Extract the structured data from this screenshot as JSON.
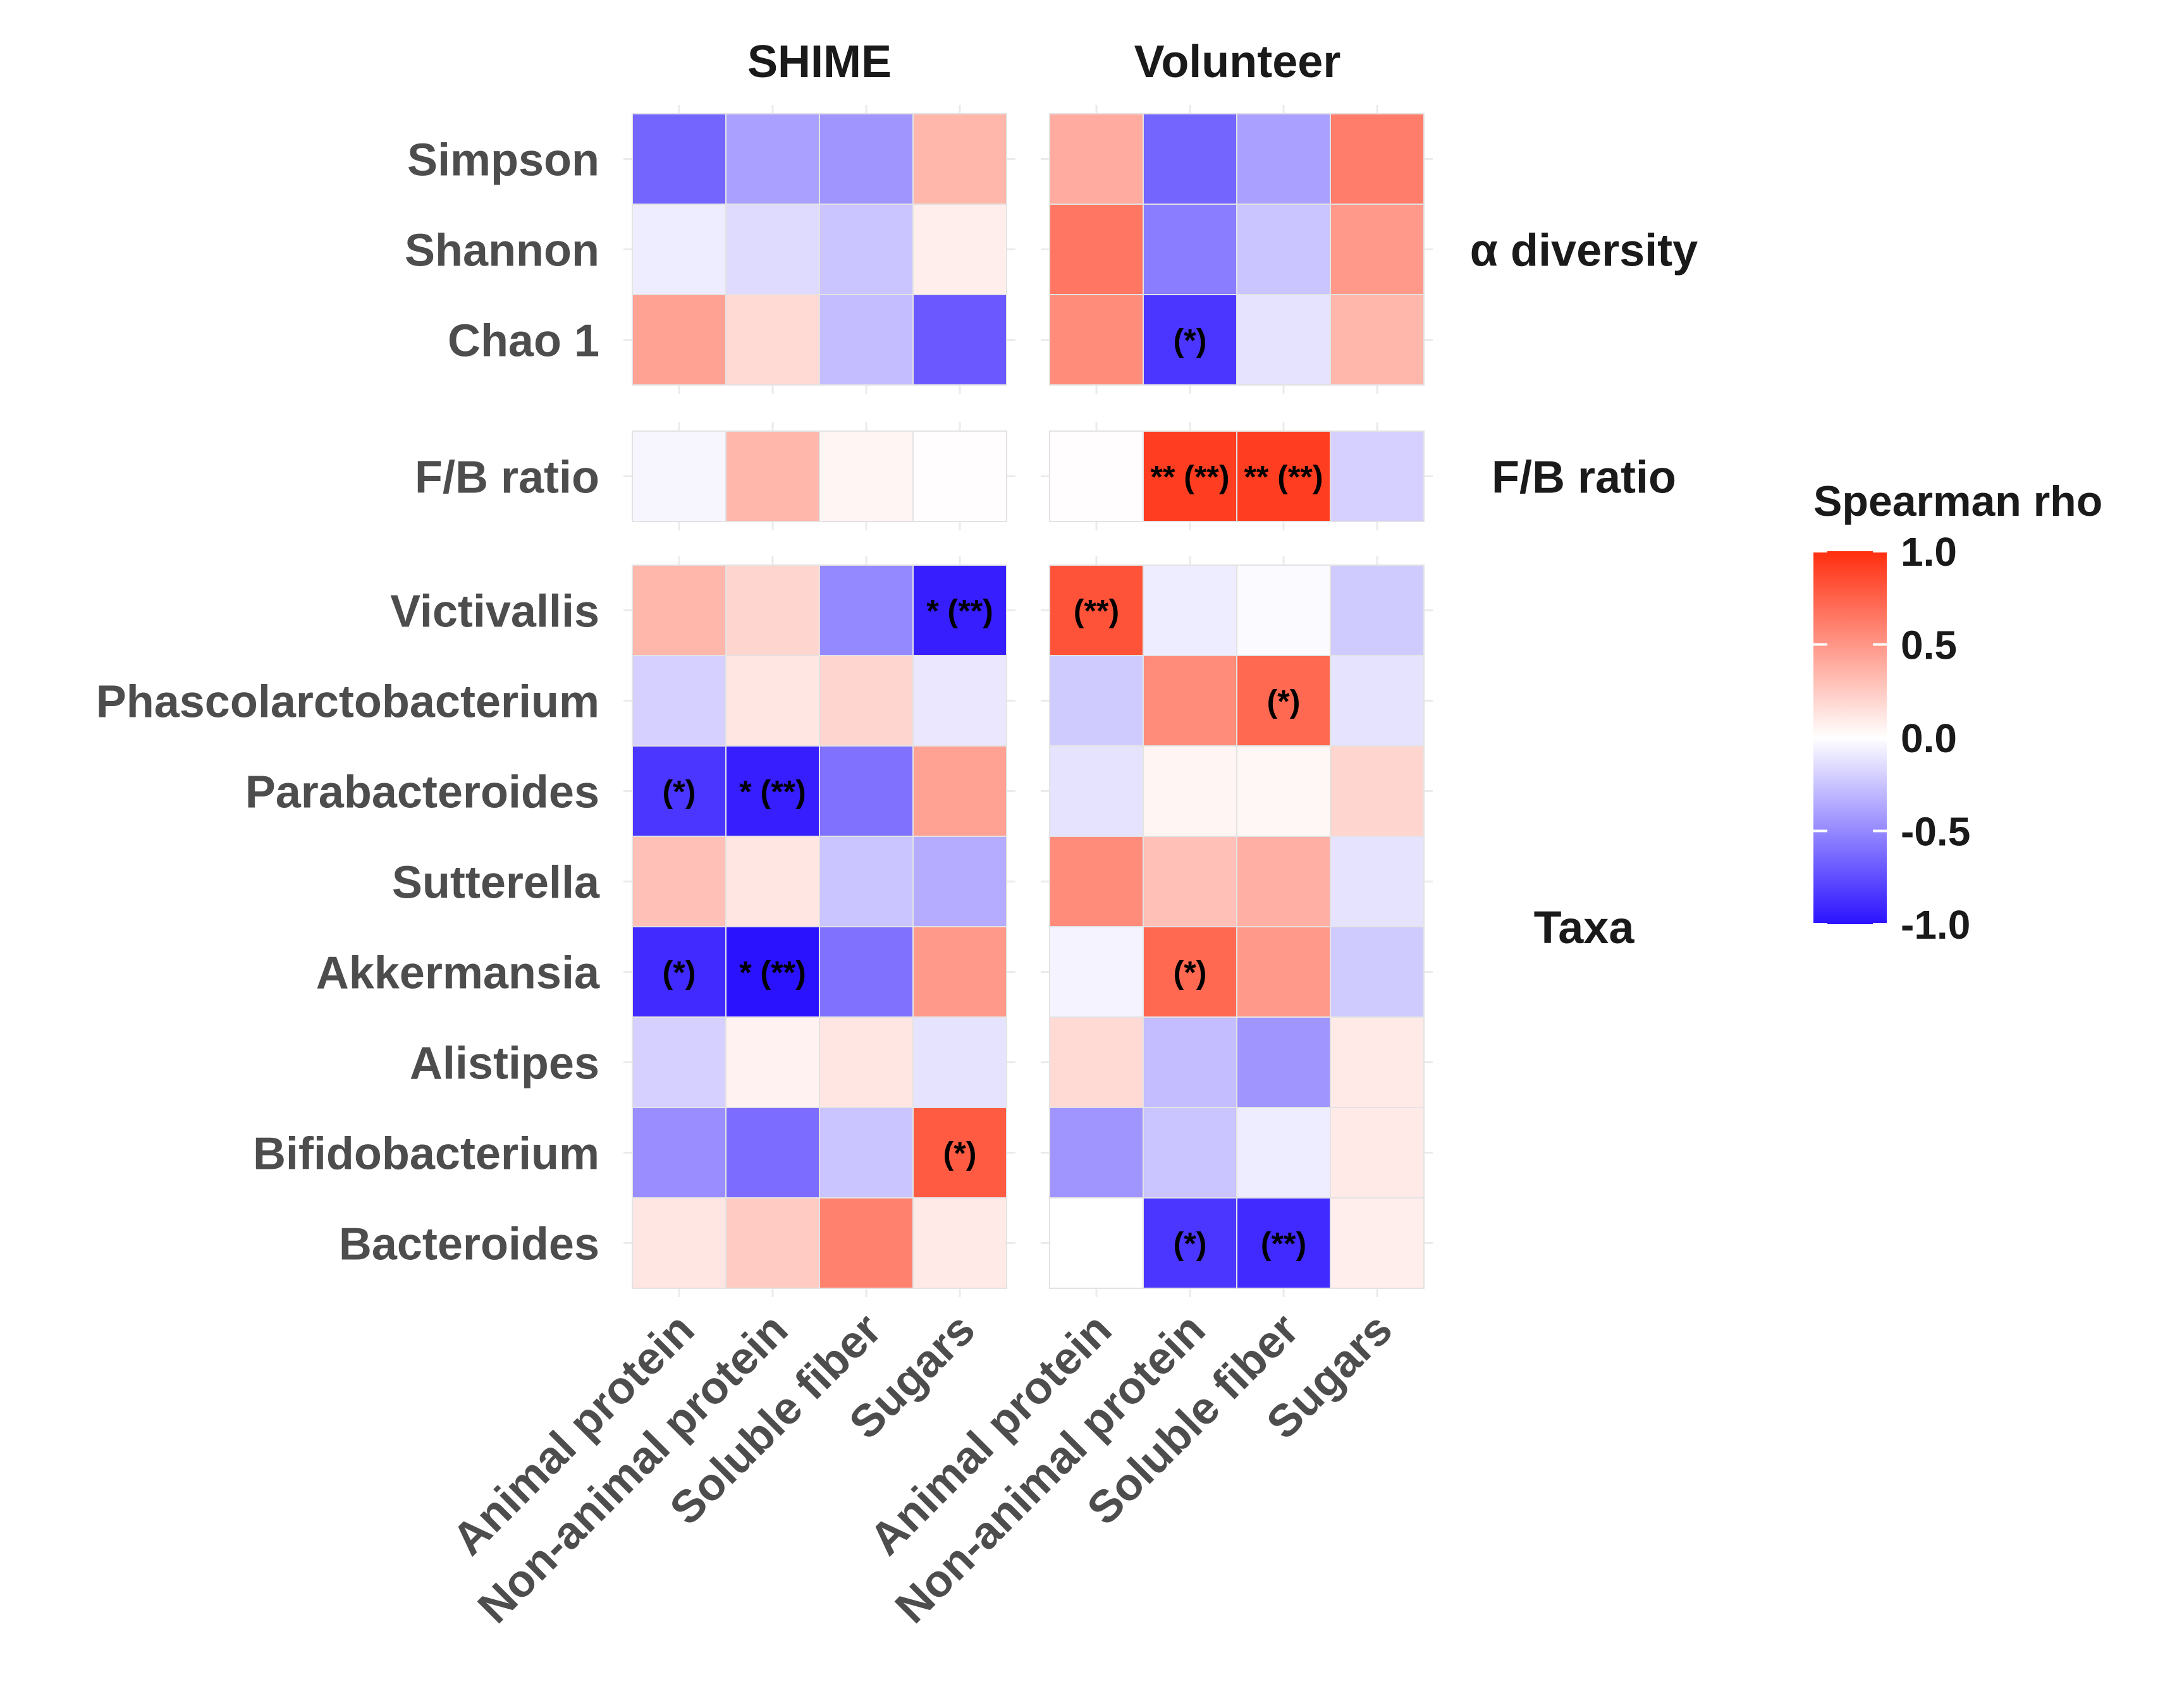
{
  "chart_data": {
    "type": "heatmap",
    "facets": [
      "SHIME",
      "Volunteer"
    ],
    "x_categories": [
      "Animal protein",
      "Non-animal protein",
      "Soluble fiber",
      "Sugars"
    ],
    "groups": [
      {
        "name": "α diversity",
        "rows": [
          "Simpson",
          "Shannon",
          "Chao 1"
        ]
      },
      {
        "name": "F/B ratio",
        "rows": [
          "F/B ratio"
        ]
      },
      {
        "name": "Taxa",
        "rows": [
          "Victivallis",
          "Phascolarctobacterium",
          "Parabacteroides",
          "Sutterella",
          "Akkermansia",
          "Alistipes",
          "Bifidobacterium",
          "Bacteroides"
        ]
      }
    ],
    "values": {
      "SHIME": {
        "Simpson": [
          -0.65,
          -0.4,
          -0.45,
          0.35
        ],
        "Shannon": [
          -0.08,
          -0.15,
          -0.25,
          0.08
        ],
        "Chao 1": [
          0.45,
          0.18,
          -0.28,
          -0.7
        ],
        "F/B ratio": [
          -0.04,
          0.35,
          0.05,
          0.01
        ],
        "Victivallis": [
          0.35,
          0.2,
          -0.5,
          -0.95
        ],
        "Phascolarctobacterium": [
          -0.2,
          0.12,
          0.2,
          -0.1
        ],
        "Parabacteroides": [
          -0.85,
          -0.95,
          -0.6,
          0.45
        ],
        "Sutterella": [
          0.3,
          0.12,
          -0.25,
          -0.35
        ],
        "Akkermansia": [
          -0.9,
          -1.0,
          -0.6,
          0.48
        ],
        "Alistipes": [
          -0.2,
          0.06,
          0.12,
          -0.12
        ],
        "Bifidobacterium": [
          -0.48,
          -0.62,
          -0.25,
          0.78
        ],
        "Bacteroides": [
          0.12,
          0.25,
          0.6,
          0.1
        ]
      },
      "Volunteer": {
        "Simpson": [
          0.4,
          -0.65,
          -0.4,
          0.62
        ],
        "Shannon": [
          0.65,
          -0.55,
          -0.25,
          0.48
        ],
        "Chao 1": [
          0.55,
          -0.85,
          -0.12,
          0.35
        ],
        "F/B ratio": [
          0.01,
          0.92,
          0.92,
          -0.2
        ],
        "Victivallis": [
          0.82,
          -0.08,
          -0.02,
          -0.22
        ],
        "Phascolarctobacterium": [
          -0.22,
          0.55,
          0.72,
          -0.12
        ],
        "Parabacteroides": [
          -0.12,
          0.05,
          0.04,
          0.2
        ],
        "Sutterella": [
          0.55,
          0.3,
          0.38,
          -0.12
        ],
        "Akkermansia": [
          -0.05,
          0.72,
          0.48,
          -0.22
        ],
        "Alistipes": [
          0.18,
          -0.28,
          -0.45,
          0.1
        ],
        "Bifidobacterium": [
          -0.45,
          -0.25,
          -0.08,
          0.1
        ],
        "Bacteroides": [
          0.0,
          -0.85,
          -0.9,
          0.08
        ]
      }
    },
    "significance": {
      "SHIME": {
        "Victivallis": [
          "",
          "",
          "",
          "* (**)"
        ],
        "Parabacteroides": [
          "(*)",
          "* (**)",
          "",
          ""
        ],
        "Akkermansia": [
          "(*)",
          "* (**)",
          "",
          ""
        ],
        "Bifidobacterium": [
          "",
          "",
          "",
          "(*)"
        ]
      },
      "Volunteer": {
        "Chao 1": [
          "",
          "(*)",
          "",
          ""
        ],
        "F/B ratio": [
          "",
          "** (**)",
          "** (**)",
          ""
        ],
        "Victivallis": [
          "(**)",
          "",
          "",
          ""
        ],
        "Phascolarctobacterium": [
          "",
          "",
          "(*)",
          ""
        ],
        "Akkermansia": [
          "",
          "(*)",
          "",
          ""
        ],
        "Bacteroides": [
          "",
          "(*)",
          "(**)",
          ""
        ]
      }
    },
    "legend": {
      "title": "Spearman rho",
      "ticks": [
        "1.0",
        "0.5",
        "0.0",
        "-0.5",
        "-1.0"
      ],
      "min": -1.0,
      "max": 1.0,
      "position": "right"
    },
    "colors": {
      "low": "#2b12ff",
      "mid": "#ffffff",
      "high": "#ff2d0e"
    }
  }
}
